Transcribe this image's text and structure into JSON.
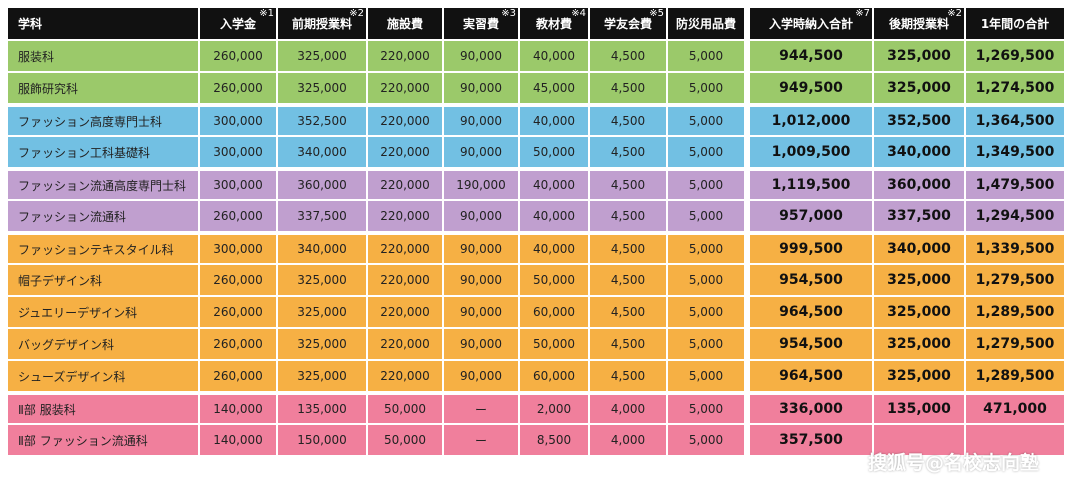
{
  "headers": [
    {
      "label": "学科",
      "note": ""
    },
    {
      "label": "入学金",
      "note": "※1"
    },
    {
      "label": "前期授業料",
      "note": "※2"
    },
    {
      "label": "施設費",
      "note": ""
    },
    {
      "label": "実習費",
      "note": "※3"
    },
    {
      "label": "教材費",
      "note": "※4"
    },
    {
      "label": "学友会費",
      "note": "※5"
    },
    {
      "label": "防災用品費",
      "note": ""
    },
    {
      "label": "入学時納入合計",
      "note": "※7"
    },
    {
      "label": "後期授業料",
      "note": "※2"
    },
    {
      "label": "1年間の合計",
      "note": ""
    }
  ],
  "rows": [
    {
      "group": "green",
      "cells": [
        "服装科",
        "260,000",
        "325,000",
        "220,000",
        "90,000",
        "40,000",
        "4,500",
        "5,000",
        "944,500",
        "325,000",
        "1,269,500"
      ]
    },
    {
      "group": "green",
      "cells": [
        "服飾研究科",
        "260,000",
        "325,000",
        "220,000",
        "90,000",
        "45,000",
        "4,500",
        "5,000",
        "949,500",
        "325,000",
        "1,274,500"
      ]
    },
    {
      "group": "blue",
      "cells": [
        "ファッション高度専門士科",
        "300,000",
        "352,500",
        "220,000",
        "90,000",
        "40,000",
        "4,500",
        "5,000",
        "1,012,000",
        "352,500",
        "1,364,500"
      ]
    },
    {
      "group": "blue",
      "cells": [
        "ファッション工科基礎科",
        "300,000",
        "340,000",
        "220,000",
        "90,000",
        "50,000",
        "4,500",
        "5,000",
        "1,009,500",
        "340,000",
        "1,349,500"
      ]
    },
    {
      "group": "purple",
      "cells": [
        "ファッション流通高度専門士科",
        "300,000",
        "360,000",
        "220,000",
        "190,000",
        "40,000",
        "4,500",
        "5,000",
        "1,119,500",
        "360,000",
        "1,479,500"
      ]
    },
    {
      "group": "purple",
      "cells": [
        "ファッション流通科",
        "260,000",
        "337,500",
        "220,000",
        "90,000",
        "40,000",
        "4,500",
        "5,000",
        "957,000",
        "337,500",
        "1,294,500"
      ]
    },
    {
      "group": "orange",
      "cells": [
        "ファッションテキスタイル科",
        "300,000",
        "340,000",
        "220,000",
        "90,000",
        "40,000",
        "4,500",
        "5,000",
        "999,500",
        "340,000",
        "1,339,500"
      ]
    },
    {
      "group": "orange",
      "cells": [
        "帽子デザイン科",
        "260,000",
        "325,000",
        "220,000",
        "90,000",
        "50,000",
        "4,500",
        "5,000",
        "954,500",
        "325,000",
        "1,279,500"
      ]
    },
    {
      "group": "orange",
      "cells": [
        "ジュエリーデザイン科",
        "260,000",
        "325,000",
        "220,000",
        "90,000",
        "60,000",
        "4,500",
        "5,000",
        "964,500",
        "325,000",
        "1,289,500"
      ]
    },
    {
      "group": "orange",
      "cells": [
        "バッグデザイン科",
        "260,000",
        "325,000",
        "220,000",
        "90,000",
        "50,000",
        "4,500",
        "5,000",
        "954,500",
        "325,000",
        "1,279,500"
      ]
    },
    {
      "group": "orange",
      "cells": [
        "シューズデザイン科",
        "260,000",
        "325,000",
        "220,000",
        "90,000",
        "60,000",
        "4,500",
        "5,000",
        "964,500",
        "325,000",
        "1,289,500"
      ]
    },
    {
      "group": "pink",
      "cells": [
        "Ⅱ部 服装科",
        "140,000",
        "135,000",
        "50,000",
        "ー",
        "2,000",
        "4,000",
        "5,000",
        "336,000",
        "135,000",
        "471,000"
      ]
    },
    {
      "group": "pink",
      "cells": [
        "Ⅱ部 ファッション流通科",
        "140,000",
        "150,000",
        "50,000",
        "ー",
        "8,500",
        "4,000",
        "5,000",
        "357,500",
        "",
        ""
      ]
    }
  ],
  "watermark": "搜狐号@名校志向塾",
  "colors": {
    "header": "#111111",
    "green": "#9bc96a",
    "blue": "#72c0e3",
    "purple": "#c09fcf",
    "orange": "#f6b044",
    "pink": "#f07f9c"
  }
}
